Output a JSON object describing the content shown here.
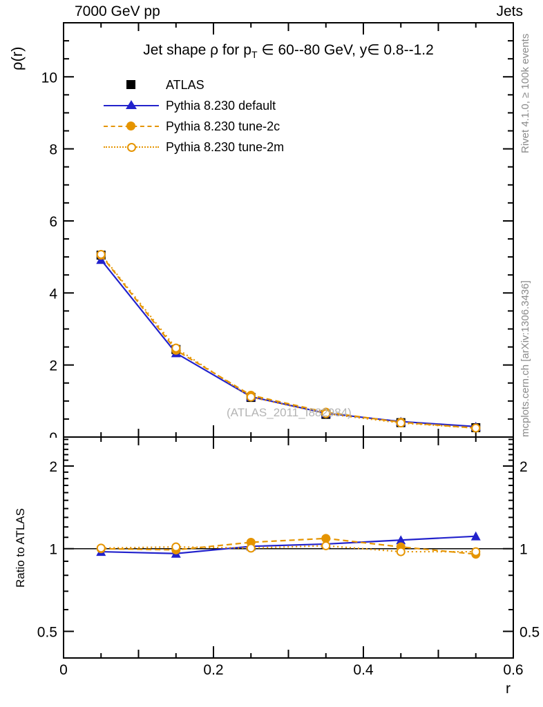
{
  "header": {
    "beam_label": "7000 GeV pp",
    "process_label": "Jets"
  },
  "side_labels": {
    "rivet": "Rivet 4.1.0, ≥ 100k events",
    "mcplots": "mcplots.cern.ch [arXiv:1306.3436]"
  },
  "watermark": "(ATLAS_2011_I882984)",
  "main_panel": {
    "title_pre": "Jet shape ρ for p",
    "title_sub": "T",
    "title_post": " ∈ 60--80 GeV, y∈ 0.8--1.2",
    "ylabel": "ρ(r)"
  },
  "ratio_panel": {
    "ylabel": "Ratio to ATLAS"
  },
  "colors": {
    "blue": "#2222cc",
    "orange": "#e59400",
    "black": "#000000",
    "gray_text": "#8a8a8a",
    "watermark_gray": "#b4b4b4"
  },
  "chart_data": [
    {
      "type": "line",
      "panel": "main",
      "title": "Jet shape ρ for p_T ∈ 60--80 GeV, y∈ 0.8--1.2",
      "xlabel": "r",
      "ylabel": "ρ(r)",
      "xlim": [
        0,
        0.6
      ],
      "ylim": [
        0,
        11.5
      ],
      "yscale": "linear",
      "grid": false,
      "legend_position": "top-left",
      "xticks": {
        "labeled": [
          0,
          0.2,
          0.4,
          0.6
        ],
        "medium_step": 0.1,
        "minor_step": 0.05
      },
      "yticks": {
        "labeled": [
          0,
          2,
          4,
          6,
          8,
          10
        ],
        "minor_step": 0.5
      },
      "x": [
        0.05,
        0.15,
        0.25,
        0.35,
        0.45,
        0.55
      ],
      "series": [
        {
          "name": "ATLAS",
          "marker": "square",
          "line": "none",
          "color": "#000000",
          "values": [
            5.05,
            2.43,
            1.1,
            0.63,
            0.4,
            0.26
          ],
          "errors": [
            0.1,
            0.05,
            0.03,
            0.02,
            0.015,
            0.012
          ]
        },
        {
          "name": "Pythia 8.230 default",
          "marker": "triangle",
          "line": "solid",
          "color": "#2222cc",
          "values": [
            4.92,
            2.33,
            1.12,
            0.66,
            0.43,
            0.29
          ],
          "errors": [
            0.03,
            0.02,
            0.012,
            0.008,
            0.006,
            0.005
          ]
        },
        {
          "name": "Pythia 8.230 tune-2c",
          "marker": "circle",
          "line": "dashed",
          "color": "#e59400",
          "values": [
            5.05,
            2.41,
            1.16,
            0.69,
            0.41,
            0.25
          ],
          "errors": [
            0.03,
            0.02,
            0.012,
            0.008,
            0.006,
            0.005
          ]
        },
        {
          "name": "Pythia 8.230 tune-2m",
          "marker": "circle-open",
          "line": "dotted",
          "color": "#e59400",
          "values": [
            5.07,
            2.47,
            1.11,
            0.65,
            0.39,
            0.25
          ],
          "errors": [
            0.03,
            0.02,
            0.012,
            0.008,
            0.006,
            0.005
          ]
        }
      ]
    },
    {
      "type": "line",
      "panel": "ratio",
      "ylabel": "Ratio to ATLAS",
      "xlim": [
        0,
        0.6
      ],
      "ylim": [
        0.4,
        2.55
      ],
      "yscale": "log",
      "grid": false,
      "reference_line": 1.0,
      "xticks": {
        "labeled": [
          0,
          0.2,
          0.4,
          0.6
        ],
        "medium_step": 0.1,
        "minor_step": 0.05
      },
      "yticks": {
        "labeled": [
          0.5,
          1,
          2
        ],
        "minor_step": 0.1
      },
      "x": [
        0.05,
        0.15,
        0.25,
        0.35,
        0.45,
        0.55
      ],
      "series": [
        {
          "name": "Pythia 8.230 default",
          "marker": "triangle",
          "line": "solid",
          "color": "#2222cc",
          "values": [
            0.975,
            0.96,
            1.02,
            1.04,
            1.075,
            1.11
          ],
          "errors": [
            0.012,
            0.012,
            0.015,
            0.018,
            0.022,
            0.025
          ]
        },
        {
          "name": "Pythia 8.230 tune-2c",
          "marker": "circle",
          "line": "dashed",
          "color": "#e59400",
          "values": [
            1.0,
            0.99,
            1.055,
            1.09,
            1.015,
            0.955
          ],
          "errors": [
            0.012,
            0.012,
            0.02,
            0.025,
            0.025,
            0.035
          ]
        },
        {
          "name": "Pythia 8.230 tune-2m",
          "marker": "circle-open",
          "line": "dotted",
          "color": "#e59400",
          "values": [
            1.005,
            1.015,
            1.005,
            1.025,
            0.975,
            0.975
          ],
          "errors": [
            0.012,
            0.012,
            0.02,
            0.025,
            0.025,
            0.035
          ]
        }
      ]
    }
  ],
  "xaxis": {
    "label": "r",
    "tick_labels": [
      "0",
      "0.2",
      "0.4",
      "0.6"
    ]
  },
  "main_yaxis_tick_labels": [
    "0",
    "2",
    "4",
    "6",
    "8",
    "10"
  ],
  "ratio_yaxis_tick_labels": [
    "0.5",
    "1",
    "2"
  ]
}
